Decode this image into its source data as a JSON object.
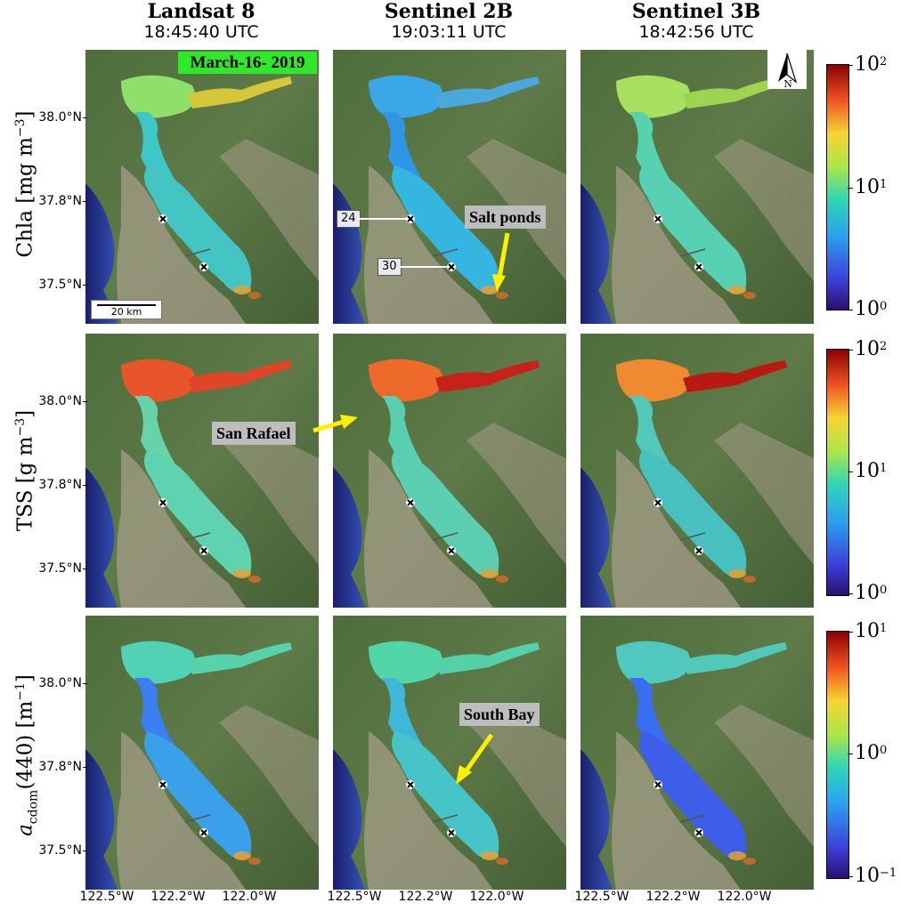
{
  "columns": [
    {
      "name": "Landsat 8",
      "time": "18:45:40 UTC"
    },
    {
      "name": "Sentinel 2B",
      "time": "19:03:11 UTC"
    },
    {
      "name": "Sentinel 3B",
      "time": "18:42:56 UTC"
    }
  ],
  "rows": [
    {
      "label": "Chla [mg m",
      "label_sup": "−3",
      "label_end": "]",
      "cbar_top": "10",
      "cbar_top_exp": "2",
      "cbar_mid": "10",
      "cbar_mid_exp": "1",
      "cbar_bot": "10",
      "cbar_bot_exp": "0"
    },
    {
      "label": "TSS [g m",
      "label_sup": "−3",
      "label_end": "]",
      "cbar_top": "10",
      "cbar_top_exp": "2",
      "cbar_mid": "10",
      "cbar_mid_exp": "1",
      "cbar_bot": "10",
      "cbar_bot_exp": "0"
    },
    {
      "label": "a",
      "label_sub": "cdom",
      "label_mid": "(440) [m",
      "label_sup": "−1",
      "label_end": "]",
      "cbar_top": "10",
      "cbar_top_exp": "1",
      "cbar_mid": "10",
      "cbar_mid_exp": "0",
      "cbar_bot": "10",
      "cbar_bot_exp": "−1"
    }
  ],
  "y_ticks": [
    "38.0°N",
    "37.8°N",
    "37.5°N"
  ],
  "x_ticks": [
    "122.5°W",
    "122.2°W",
    "122.0°W"
  ],
  "date_badge": "March-16- 2019",
  "scale_bar": "20 km",
  "north_label": "N",
  "stations": [
    "24",
    "30"
  ],
  "callouts": {
    "salt_ponds": "Salt ponds",
    "san_rafael": "San Rafael",
    "south_bay": "South Bay"
  },
  "colors": {
    "arrow": "#ffee00",
    "date_badge": "#2ee829",
    "callout_bg": "#bdbdbd"
  }
}
